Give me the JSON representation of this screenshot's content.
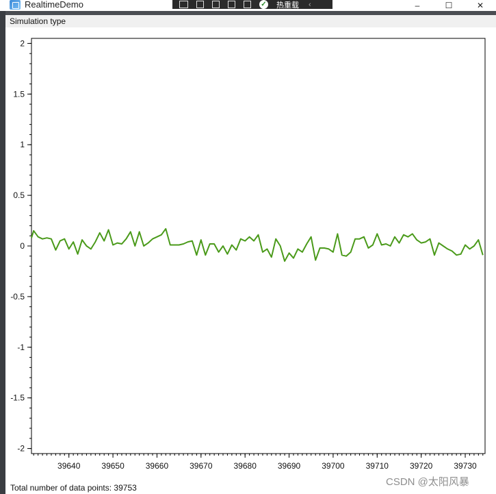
{
  "window": {
    "title": "RealtimeDemo",
    "controls": {
      "minimize": "–",
      "maximize": "☐",
      "close": "✕"
    }
  },
  "overlay_toolbar": {
    "hot_reload_label": "热重载"
  },
  "menubar": {
    "items": [
      "Simulation type"
    ]
  },
  "status": {
    "text": "Total number of data points: 39753"
  },
  "watermark": {
    "text": "CSDN @太阳风暴"
  },
  "colors": {
    "series": "#4a9a1a"
  },
  "chart_data": {
    "type": "line",
    "title": "",
    "xlabel": "",
    "ylabel": "",
    "xlim": [
      39631.5,
      39734.5
    ],
    "ylim": [
      -2.05,
      2.05
    ],
    "yticks": [
      -2,
      -1.5,
      -1,
      -0.5,
      0,
      0.5,
      1,
      1.5,
      2
    ],
    "ytick_labels": [
      "-2",
      "-1.5",
      "-1",
      "-0.5",
      "0",
      "0.5",
      "1",
      "1.5",
      "2"
    ],
    "xticks": [
      39640,
      39650,
      39660,
      39670,
      39680,
      39690,
      39700,
      39710,
      39720,
      39730
    ],
    "xtick_labels": [
      "39640",
      "39650",
      "39660",
      "39670",
      "39680",
      "39690",
      "39700",
      "39710",
      "39720",
      "39730"
    ],
    "grid": false,
    "series": [
      {
        "x": [
          39631,
          39632,
          39633,
          39634,
          39635,
          39636,
          39637,
          39638,
          39639,
          39640,
          39641,
          39642,
          39643,
          39644,
          39645,
          39646,
          39647,
          39648,
          39649,
          39650,
          39651,
          39652,
          39653,
          39654,
          39655,
          39656,
          39657,
          39658,
          39659,
          39660,
          39661,
          39662,
          39663,
          39664,
          39665,
          39666,
          39667,
          39668,
          39669,
          39670,
          39671,
          39672,
          39673,
          39674,
          39675,
          39676,
          39677,
          39678,
          39679,
          39680,
          39681,
          39682,
          39683,
          39684,
          39685,
          39686,
          39687,
          39688,
          39689,
          39690,
          39691,
          39692,
          39693,
          39694,
          39695,
          39696,
          39697,
          39698,
          39699,
          39700,
          39701,
          39702,
          39703,
          39704,
          39705,
          39706,
          39707,
          39708,
          39709,
          39710,
          39711,
          39712,
          39713,
          39714,
          39715,
          39716,
          39717,
          39718,
          39719,
          39720,
          39721,
          39722,
          39723,
          39724,
          39725,
          39726,
          39727,
          39728,
          39729,
          39730,
          39731,
          39732,
          39733,
          39734
        ],
        "values": [
          0.08,
          0.15,
          0.09,
          0.07,
          0.08,
          0.07,
          -0.04,
          0.05,
          0.07,
          -0.03,
          0.04,
          -0.08,
          0.06,
          0.0,
          -0.03,
          0.04,
          0.13,
          0.05,
          0.16,
          0.01,
          0.03,
          0.02,
          0.07,
          0.14,
          0.0,
          0.14,
          0.0,
          0.03,
          0.07,
          0.09,
          0.11,
          0.17,
          0.01,
          0.01,
          0.01,
          0.02,
          0.04,
          0.05,
          -0.09,
          0.06,
          -0.09,
          0.02,
          0.02,
          -0.06,
          0.0,
          -0.08,
          0.01,
          -0.04,
          0.07,
          0.05,
          0.09,
          0.05,
          0.11,
          -0.06,
          -0.03,
          -0.11,
          0.07,
          0.0,
          -0.15,
          -0.07,
          -0.12,
          -0.03,
          -0.06,
          0.02,
          0.09,
          -0.14,
          -0.02,
          -0.02,
          -0.03,
          -0.06,
          0.12,
          -0.09,
          -0.1,
          -0.06,
          0.07,
          0.07,
          0.09,
          -0.02,
          0.01,
          0.12,
          0.01,
          0.02,
          0.0,
          0.09,
          0.03,
          0.11,
          0.09,
          0.12,
          0.06,
          0.03,
          0.04,
          0.07,
          -0.09,
          0.03,
          0.0,
          -0.03,
          -0.05,
          -0.09,
          -0.08,
          0.01,
          -0.03,
          0.0,
          0.06,
          -0.09
        ]
      }
    ]
  }
}
